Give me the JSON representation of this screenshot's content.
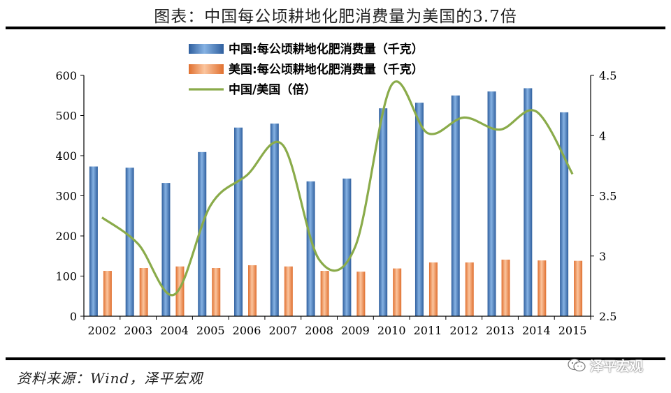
{
  "title": "图表：中国每公顷耕地化肥消费量为美国的3.7倍",
  "source": "资料来源：Wind，泽平宏观",
  "watermark": "泽平宏观",
  "watermark_icon": "wechat-icon",
  "colors": {
    "china_bar": "#4a7fc0",
    "us_bar": "#f08a4a",
    "ratio_line": "#8aab4a"
  },
  "chart_data": {
    "type": "bar",
    "categories": [
      "2002",
      "2003",
      "2004",
      "2005",
      "2006",
      "2007",
      "2008",
      "2009",
      "2010",
      "2011",
      "2012",
      "2013",
      "2014",
      "2015"
    ],
    "series": [
      {
        "name": "中国:每公顷耕地化肥消费量（千克）",
        "type": "bar",
        "axis": "left",
        "values": [
          373,
          370,
          332,
          409,
          470,
          480,
          336,
          343,
          518,
          532,
          550,
          560,
          568,
          508
        ]
      },
      {
        "name": "美国:每公顷耕地化肥消费量（千克）",
        "type": "bar",
        "axis": "left",
        "values": [
          113,
          120,
          124,
          120,
          127,
          124,
          113,
          111,
          119,
          134,
          134,
          141,
          139,
          138
        ]
      },
      {
        "name": "中国/美国（倍）",
        "type": "line",
        "axis": "right",
        "values": [
          3.32,
          3.1,
          2.68,
          3.42,
          3.67,
          3.92,
          2.97,
          3.08,
          4.42,
          4.02,
          4.15,
          4.05,
          4.2,
          3.68
        ]
      }
    ],
    "y_left": {
      "min": 0,
      "max": 600,
      "ticks": [
        "0",
        "100",
        "200",
        "300",
        "400",
        "500",
        "600"
      ]
    },
    "y_right": {
      "min": 2.5,
      "max": 4.5,
      "ticks": [
        "2.5",
        "3",
        "3.5",
        "4",
        "4.5"
      ]
    },
    "legend_position": "top-left",
    "grid": false
  }
}
